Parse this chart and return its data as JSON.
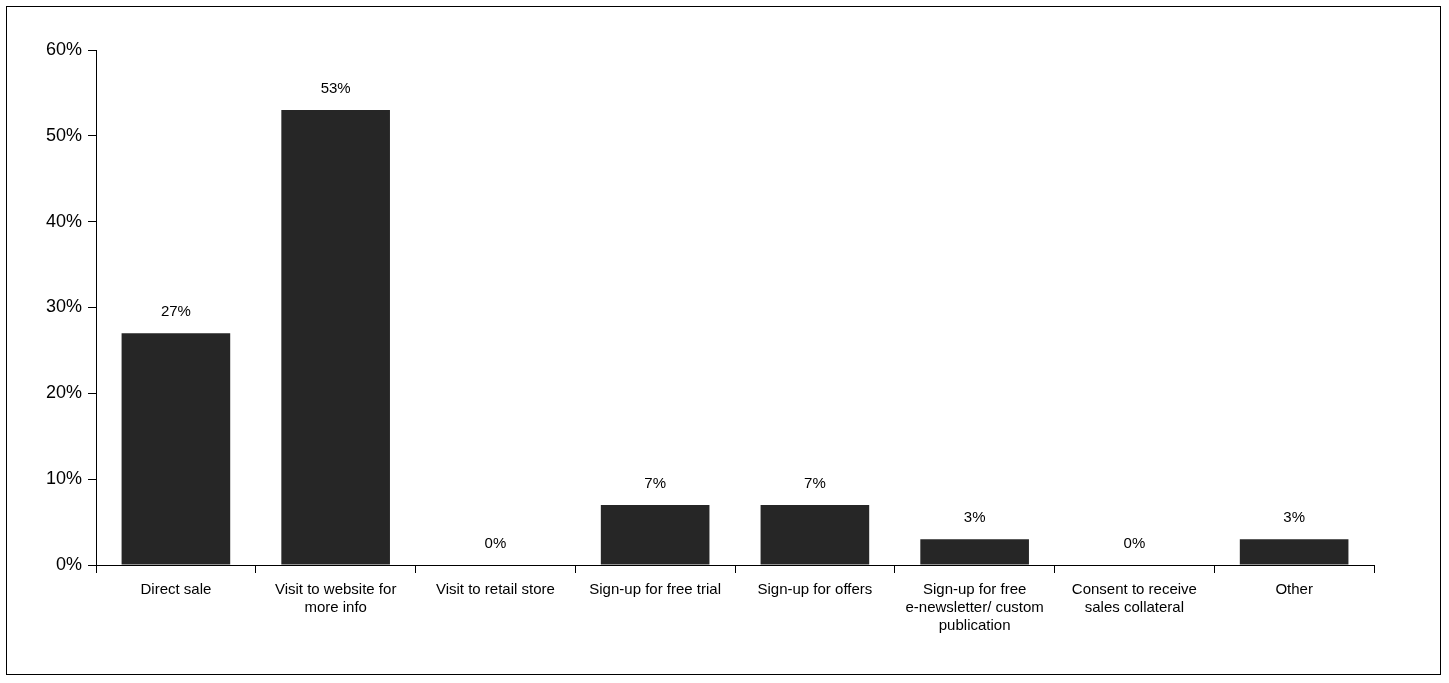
{
  "chart_data": {
    "type": "bar",
    "categories": [
      "Direct sale",
      "Visit to website for more info",
      "Visit to retail store",
      "Sign-up for free trial",
      "Sign-up for offers",
      "Sign-up for free e-newsletter/ custom publication",
      "Consent to receive sales collateral",
      "Other"
    ],
    "values": [
      27,
      53,
      0,
      7,
      7,
      3,
      0,
      3
    ],
    "value_labels": [
      "27%",
      "53%",
      "0%",
      "7%",
      "7%",
      "3%",
      "0%",
      "3%"
    ],
    "color": "#262626",
    "ylim": [
      0,
      60
    ],
    "yticks": [
      {
        "value": 0,
        "label": "0%"
      },
      {
        "value": 10,
        "label": "10%"
      },
      {
        "value": 20,
        "label": "20%"
      },
      {
        "value": 30,
        "label": "30%"
      },
      {
        "value": 40,
        "label": "40%"
      },
      {
        "value": 50,
        "label": "50%"
      },
      {
        "value": 60,
        "label": "60%"
      }
    ],
    "grid": false,
    "legend": false
  }
}
